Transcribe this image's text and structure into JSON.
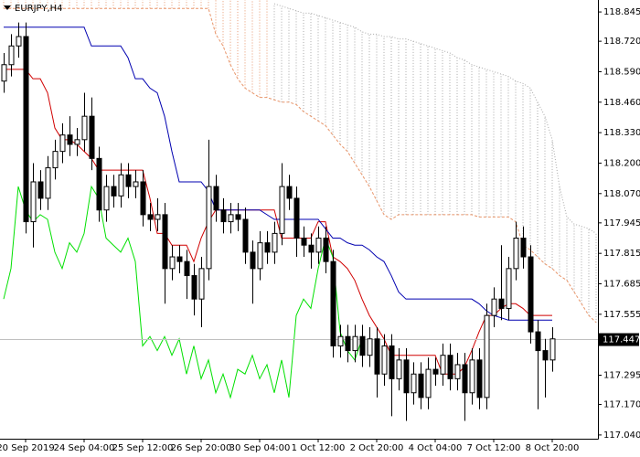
{
  "chart_data": {
    "type": "candlestick",
    "title": "EURJPY,H4",
    "categories": [
      null,
      null,
      null,
      "20 Sep 2019",
      null,
      null,
      null,
      null,
      null,
      null,
      null,
      "24 Sep 04:00",
      null,
      null,
      null,
      null,
      null,
      null,
      null,
      "25 Sep 12:00",
      null,
      null,
      null,
      null,
      null,
      null,
      null,
      "26 Sep 20:00",
      null,
      null,
      null,
      null,
      null,
      null,
      null,
      "30 Sep 04:00",
      null,
      null,
      null,
      null,
      null,
      null,
      null,
      "1 Oct 12:00",
      null,
      null,
      null,
      null,
      null,
      null,
      null,
      "2 Oct 20:00",
      null,
      null,
      null,
      null,
      null,
      null,
      null,
      "4 Oct 04:00",
      null,
      null,
      null,
      null,
      null,
      null,
      null,
      "7 Oct 12:00",
      null,
      null,
      null,
      null,
      null,
      null,
      null,
      "8 Oct 20:00",
      null,
      null,
      null,
      null,
      null,
      null
    ],
    "open": [
      118.55,
      118.62,
      118.7,
      118.74,
      117.95,
      118.12,
      118.05,
      118.18,
      118.25,
      118.32,
      118.28,
      118.3,
      118.4,
      118.22,
      118.0,
      118.1,
      118.06,
      118.15,
      118.1,
      118.12,
      117.98,
      117.96,
      117.98,
      117.75,
      117.8,
      117.78,
      117.72,
      117.62,
      117.75,
      118.1,
      118.0,
      117.95,
      117.98,
      117.96,
      117.82,
      117.75,
      117.86,
      117.82,
      117.9,
      118.1,
      118.05,
      117.88,
      117.85,
      117.82,
      117.88,
      117.78,
      117.42,
      117.46,
      117.4,
      117.46,
      117.38,
      117.45,
      117.3,
      117.42,
      117.28,
      117.36,
      117.22,
      117.3,
      117.2,
      117.32,
      117.3,
      117.38,
      117.28,
      117.34,
      117.22,
      117.36,
      117.2,
      117.55,
      117.62,
      117.58,
      117.75,
      117.88,
      117.8,
      117.48,
      117.4,
      117.36,
      null,
      null,
      null,
      null,
      null,
      null
    ],
    "high": [
      118.67,
      118.75,
      118.8,
      118.8,
      118.2,
      118.17,
      118.23,
      118.3,
      118.37,
      118.4,
      118.35,
      118.5,
      118.48,
      118.27,
      118.15,
      118.15,
      118.2,
      118.2,
      118.17,
      118.17,
      118.03,
      118.05,
      118.03,
      117.85,
      117.85,
      117.83,
      117.77,
      117.8,
      118.3,
      118.15,
      118.05,
      118.03,
      118.03,
      118.01,
      117.87,
      117.91,
      117.91,
      117.95,
      118.2,
      118.15,
      118.1,
      117.93,
      117.9,
      117.93,
      117.93,
      117.83,
      117.51,
      117.51,
      117.51,
      117.51,
      117.5,
      117.5,
      117.47,
      117.47,
      117.41,
      117.41,
      117.35,
      117.35,
      117.37,
      117.37,
      117.43,
      117.43,
      117.39,
      117.39,
      117.41,
      117.41,
      117.6,
      117.67,
      117.85,
      117.8,
      117.95,
      117.93,
      117.85,
      117.53,
      117.45,
      117.5,
      null,
      null,
      null,
      null,
      null,
      null
    ],
    "low": [
      118.5,
      118.57,
      118.65,
      117.9,
      117.84,
      118.0,
      118.0,
      118.13,
      118.2,
      118.23,
      118.23,
      118.25,
      118.17,
      117.95,
      117.95,
      118.01,
      118.01,
      118.05,
      118.05,
      117.93,
      117.91,
      117.91,
      117.6,
      117.7,
      117.73,
      117.62,
      117.55,
      117.5,
      117.7,
      117.95,
      117.9,
      117.9,
      117.91,
      117.77,
      117.6,
      117.7,
      117.77,
      117.77,
      117.85,
      118.0,
      117.8,
      117.8,
      117.75,
      117.77,
      117.73,
      117.37,
      117.37,
      117.35,
      117.35,
      117.33,
      117.33,
      117.2,
      117.25,
      117.12,
      117.23,
      117.1,
      117.17,
      117.15,
      117.15,
      117.25,
      117.25,
      117.23,
      117.23,
      117.1,
      117.17,
      117.15,
      117.15,
      117.5,
      117.53,
      117.53,
      117.7,
      117.75,
      117.43,
      117.15,
      117.2,
      117.31,
      null,
      null,
      null,
      null,
      null,
      null
    ],
    "close": [
      118.62,
      118.7,
      118.74,
      117.95,
      118.12,
      118.05,
      118.18,
      118.25,
      118.32,
      118.28,
      118.3,
      118.4,
      118.22,
      118.0,
      118.1,
      118.06,
      118.15,
      118.1,
      118.12,
      117.98,
      117.96,
      117.98,
      117.75,
      117.8,
      117.78,
      117.72,
      117.62,
      117.75,
      118.1,
      118.0,
      117.95,
      117.98,
      117.96,
      117.82,
      117.75,
      117.86,
      117.82,
      117.9,
      118.1,
      118.05,
      117.88,
      117.85,
      117.82,
      117.88,
      117.78,
      117.42,
      117.46,
      117.4,
      117.46,
      117.38,
      117.45,
      117.3,
      117.42,
      117.28,
      117.36,
      117.22,
      117.3,
      117.2,
      117.32,
      117.3,
      117.38,
      117.28,
      117.34,
      117.22,
      117.36,
      117.2,
      117.55,
      117.62,
      117.58,
      117.75,
      117.88,
      117.8,
      117.48,
      117.4,
      117.36,
      117.45,
      null,
      null,
      null,
      null,
      null,
      null
    ],
    "bull_color": "#ffffff",
    "bear_color": "#000000",
    "series": [
      {
        "color": "#d00000",
        "values": [
          118.6,
          118.6,
          118.6,
          118.6,
          118.56,
          118.56,
          118.5,
          118.35,
          118.3,
          118.3,
          118.28,
          118.25,
          118.22,
          118.17,
          118.17,
          118.17,
          118.17,
          118.17,
          118.17,
          118.17,
          118.05,
          117.9,
          117.9,
          117.85,
          117.85,
          117.85,
          117.78,
          117.88,
          117.95,
          118.0,
          118.0,
          118.0,
          118.0,
          118.0,
          118.0,
          118.0,
          118.0,
          118.0,
          117.88,
          117.88,
          117.88,
          117.88,
          117.88,
          117.95,
          117.95,
          117.8,
          117.78,
          117.75,
          117.7,
          117.62,
          117.55,
          117.5,
          117.45,
          117.38,
          117.38,
          117.38,
          117.38,
          117.38,
          117.38,
          117.38,
          117.3,
          117.3,
          117.3,
          117.33,
          117.4,
          117.48,
          117.55,
          117.55,
          117.58,
          117.6,
          117.6,
          117.58,
          117.55,
          117.55,
          117.55,
          117.55,
          null,
          null,
          null,
          null,
          null,
          null
        ]
      },
      {
        "color": "#0000b0",
        "values": [
          118.78,
          118.78,
          118.78,
          118.78,
          118.78,
          118.78,
          118.78,
          118.78,
          118.78,
          118.78,
          118.78,
          118.78,
          118.7,
          118.7,
          118.7,
          118.7,
          118.7,
          118.65,
          118.56,
          118.56,
          118.52,
          118.5,
          118.4,
          118.25,
          118.12,
          118.12,
          118.12,
          118.12,
          118.08,
          118.0,
          118.0,
          118.0,
          118.0,
          118.0,
          118.0,
          118.0,
          117.98,
          117.96,
          117.96,
          117.96,
          117.96,
          117.96,
          117.96,
          117.96,
          117.92,
          117.88,
          117.88,
          117.86,
          117.85,
          117.85,
          117.83,
          117.8,
          117.78,
          117.72,
          117.65,
          117.62,
          117.62,
          117.62,
          117.62,
          117.62,
          117.62,
          117.62,
          117.62,
          117.62,
          117.62,
          117.6,
          117.57,
          117.55,
          117.54,
          117.53,
          117.53,
          117.53,
          117.53,
          117.53,
          117.53,
          117.53,
          null,
          null,
          null,
          null,
          null,
          null
        ]
      },
      {
        "color": "#00e000",
        "values": [
          117.62,
          117.75,
          118.1,
          118.0,
          117.95,
          117.98,
          117.96,
          117.82,
          117.75,
          117.86,
          117.82,
          117.9,
          118.1,
          118.05,
          117.88,
          117.85,
          117.82,
          117.88,
          117.78,
          117.42,
          117.46,
          117.4,
          117.46,
          117.38,
          117.45,
          117.3,
          117.42,
          117.28,
          117.36,
          117.22,
          117.3,
          117.2,
          117.32,
          117.3,
          117.38,
          117.28,
          117.34,
          117.22,
          117.36,
          117.2,
          117.55,
          117.62,
          117.58,
          117.75,
          117.88,
          117.8,
          117.48,
          117.4,
          117.36,
          117.45,
          null,
          null,
          null,
          null,
          null,
          null,
          null,
          null,
          null,
          null,
          null,
          null,
          null,
          null,
          null,
          null,
          null,
          null,
          null,
          null,
          null,
          null,
          null,
          null,
          null,
          null,
          null,
          null,
          null,
          null,
          null,
          null
        ]
      },
      {
        "color": "#e8956a",
        "dash": "dashed",
        "values": [
          118.86,
          118.86,
          118.86,
          118.86,
          118.86,
          118.86,
          118.86,
          118.86,
          118.86,
          118.86,
          118.86,
          118.86,
          118.86,
          118.86,
          118.86,
          118.86,
          118.86,
          118.86,
          118.86,
          118.86,
          118.86,
          118.86,
          118.86,
          118.86,
          118.86,
          118.86,
          118.86,
          118.86,
          118.86,
          118.75,
          118.7,
          118.62,
          118.56,
          118.52,
          118.5,
          118.48,
          118.48,
          118.47,
          118.46,
          118.46,
          118.45,
          118.42,
          118.4,
          118.38,
          118.36,
          118.32,
          118.28,
          118.25,
          118.2,
          118.15,
          118.1,
          118.04,
          117.98,
          117.96,
          117.98,
          117.98,
          117.98,
          117.98,
          117.98,
          117.98,
          117.98,
          117.98,
          117.98,
          117.98,
          117.98,
          117.97,
          117.97,
          117.97,
          117.97,
          117.97,
          117.95,
          117.85,
          117.83,
          117.8,
          117.77,
          117.75,
          117.72,
          117.7,
          117.65,
          117.6,
          117.55,
          117.52
        ]
      },
      {
        "color": "#a8a8a8",
        "dash": "dotted",
        "values": [
          null,
          null,
          null,
          null,
          null,
          null,
          null,
          null,
          null,
          null,
          null,
          null,
          null,
          null,
          null,
          null,
          null,
          null,
          null,
          null,
          null,
          null,
          null,
          null,
          null,
          null,
          null,
          null,
          null,
          null,
          null,
          null,
          null,
          null,
          null,
          null,
          null,
          118.88,
          118.87,
          118.86,
          118.85,
          118.84,
          118.84,
          118.83,
          118.82,
          118.81,
          118.8,
          118.79,
          118.78,
          118.76,
          118.75,
          118.75,
          118.74,
          118.74,
          118.73,
          118.73,
          118.72,
          118.71,
          118.7,
          118.69,
          118.68,
          118.67,
          118.65,
          118.64,
          118.62,
          118.61,
          118.6,
          118.59,
          118.58,
          118.57,
          118.55,
          118.54,
          118.52,
          118.46,
          118.4,
          118.3,
          118.1,
          117.97,
          117.94,
          117.93,
          117.92,
          117.9
        ]
      }
    ],
    "last_price": 117.447,
    "ylim": [
      117.024,
      118.896
    ],
    "yticks": [
      118.845,
      {
        "value": 118.72,
        "label": "118.720"
      },
      {
        "value": 118.59,
        "label": "118.590"
      },
      {
        "value": 118.46,
        "label": "118.460"
      },
      {
        "value": 118.33,
        "label": "118.330"
      },
      {
        "value": 118.2,
        "label": "118.200"
      },
      {
        "value": 118.07,
        "label": "118.070"
      },
      117.945,
      117.815,
      117.685,
      117.555,
      117.295,
      {
        "value": 117.17,
        "label": "117.170"
      },
      {
        "value": 117.04,
        "label": "117.040"
      }
    ],
    "grid": false
  }
}
